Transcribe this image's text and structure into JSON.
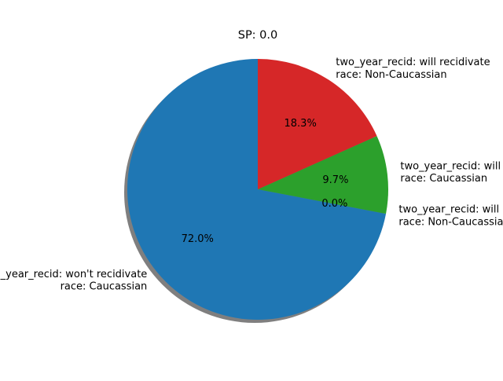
{
  "chart_data": {
    "type": "pie",
    "title": "SP: 0.0",
    "shadow": true,
    "start_angle_deg": 90,
    "direction": "counterclockwise",
    "slices": [
      {
        "value": 72.0,
        "pct_label": "72.0%",
        "label_line1": "two_year_recid: won't recidivate",
        "label_line2": "race: Caucassian",
        "color": "#1f77b4"
      },
      {
        "value": 0.0,
        "pct_label": "0.0%",
        "label_line1": "two_year_recid: will recidivate",
        "label_line2": "race: Non-Caucassian",
        "color": "#ff7f0e"
      },
      {
        "value": 9.7,
        "pct_label": "9.7%",
        "label_line1": "two_year_recid: will recidivate",
        "label_line2": "race: Caucassian",
        "color": "#2ca02c"
      },
      {
        "value": 18.3,
        "pct_label": "18.3%",
        "label_line1": "two_year_recid: will recidivate",
        "label_line2": "race: Non-Caucassian",
        "color": "#d62728"
      }
    ]
  }
}
